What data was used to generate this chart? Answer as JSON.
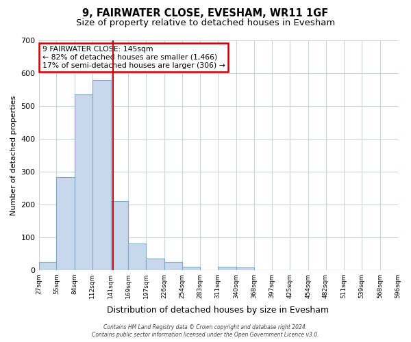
{
  "title": "9, FAIRWATER CLOSE, EVESHAM, WR11 1GF",
  "subtitle": "Size of property relative to detached houses in Evesham",
  "xlabel": "Distribution of detached houses by size in Evesham",
  "ylabel": "Number of detached properties",
  "bin_edges": [
    27,
    55,
    84,
    112,
    141,
    169,
    197,
    226,
    254,
    283,
    311,
    340,
    368,
    397,
    425,
    454,
    482,
    511,
    539,
    568,
    596
  ],
  "bar_heights": [
    25,
    283,
    535,
    580,
    210,
    80,
    35,
    25,
    10,
    0,
    10,
    7,
    0,
    0,
    0,
    0,
    0,
    0,
    0,
    0
  ],
  "bar_color": "#c8d8ec",
  "bar_edgecolor": "#7aaac8",
  "vline_x": 145,
  "vline_color": "#cc0000",
  "ylim": [
    0,
    700
  ],
  "yticks": [
    0,
    100,
    200,
    300,
    400,
    500,
    600,
    700
  ],
  "annotation_title": "9 FAIRWATER CLOSE: 145sqm",
  "annotation_line1": "← 82% of detached houses are smaller (1,466)",
  "annotation_line2": "17% of semi-detached houses are larger (306) →",
  "annotation_box_facecolor": "#ffffff",
  "annotation_box_edgecolor": "#cc0000",
  "footer_line1": "Contains HM Land Registry data © Crown copyright and database right 2024.",
  "footer_line2": "Contains public sector information licensed under the Open Government Licence v3.0.",
  "figure_facecolor": "#ffffff",
  "axes_facecolor": "#ffffff",
  "grid_color": "#c8d4e0",
  "title_fontsize": 10.5,
  "subtitle_fontsize": 9.5,
  "tick_labels": [
    "27sqm",
    "55sqm",
    "84sqm",
    "112sqm",
    "141sqm",
    "169sqm",
    "197sqm",
    "226sqm",
    "254sqm",
    "283sqm",
    "311sqm",
    "340sqm",
    "368sqm",
    "397sqm",
    "425sqm",
    "454sqm",
    "482sqm",
    "511sqm",
    "539sqm",
    "568sqm",
    "596sqm"
  ]
}
